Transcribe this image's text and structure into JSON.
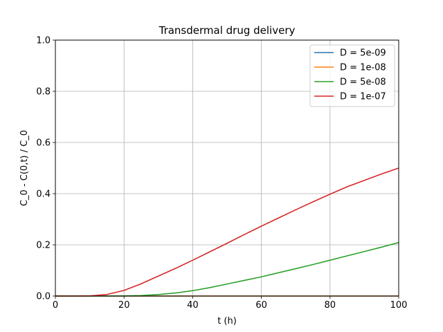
{
  "chart_data": {
    "type": "line",
    "title": "Transdermal drug delivery",
    "xlabel": "t (h)",
    "ylabel": "C_0 - C(0,t) / C_0",
    "xlim": [
      0,
      100
    ],
    "ylim": [
      0,
      1.0
    ],
    "xticks": [
      "0",
      "20",
      "40",
      "60",
      "80",
      "100"
    ],
    "yticks": [
      "0.0",
      "0.2",
      "0.4",
      "0.6",
      "0.8",
      "1.0"
    ],
    "grid": true,
    "legend_position": "top-right",
    "x": [
      0,
      5,
      10,
      15,
      20,
      25,
      30,
      35,
      40,
      45,
      50,
      55,
      60,
      65,
      70,
      75,
      80,
      85,
      90,
      95,
      100
    ],
    "series": [
      {
        "name": "D = 5e-09",
        "color": "#1f77b4",
        "values": [
          0,
          0,
          0,
          0,
          0,
          0,
          0,
          0,
          0,
          0,
          0,
          0,
          0,
          0,
          0,
          0,
          0,
          0,
          0,
          0,
          0
        ]
      },
      {
        "name": "D = 1e-08",
        "color": "#ff7f0e",
        "values": [
          0,
          0,
          0,
          0,
          0,
          0,
          0,
          0,
          0,
          0,
          0,
          0,
          0,
          0,
          0,
          0,
          0,
          0,
          0,
          0,
          0
        ]
      },
      {
        "name": "D = 5e-08",
        "color": "#2ca02c",
        "values": [
          0,
          0,
          0,
          0,
          0.0005,
          0.002,
          0.006,
          0.012,
          0.021,
          0.033,
          0.047,
          0.061,
          0.075,
          0.091,
          0.107,
          0.123,
          0.14,
          0.157,
          0.174,
          0.191,
          0.209
        ]
      },
      {
        "name": "D = 1e-07",
        "color": "#d62728",
        "values": [
          0,
          0,
          0.0005,
          0.006,
          0.022,
          0.048,
          0.078,
          0.108,
          0.14,
          0.173,
          0.206,
          0.24,
          0.273,
          0.305,
          0.337,
          0.368,
          0.398,
          0.427,
          0.452,
          0.477,
          0.5
        ]
      }
    ]
  }
}
